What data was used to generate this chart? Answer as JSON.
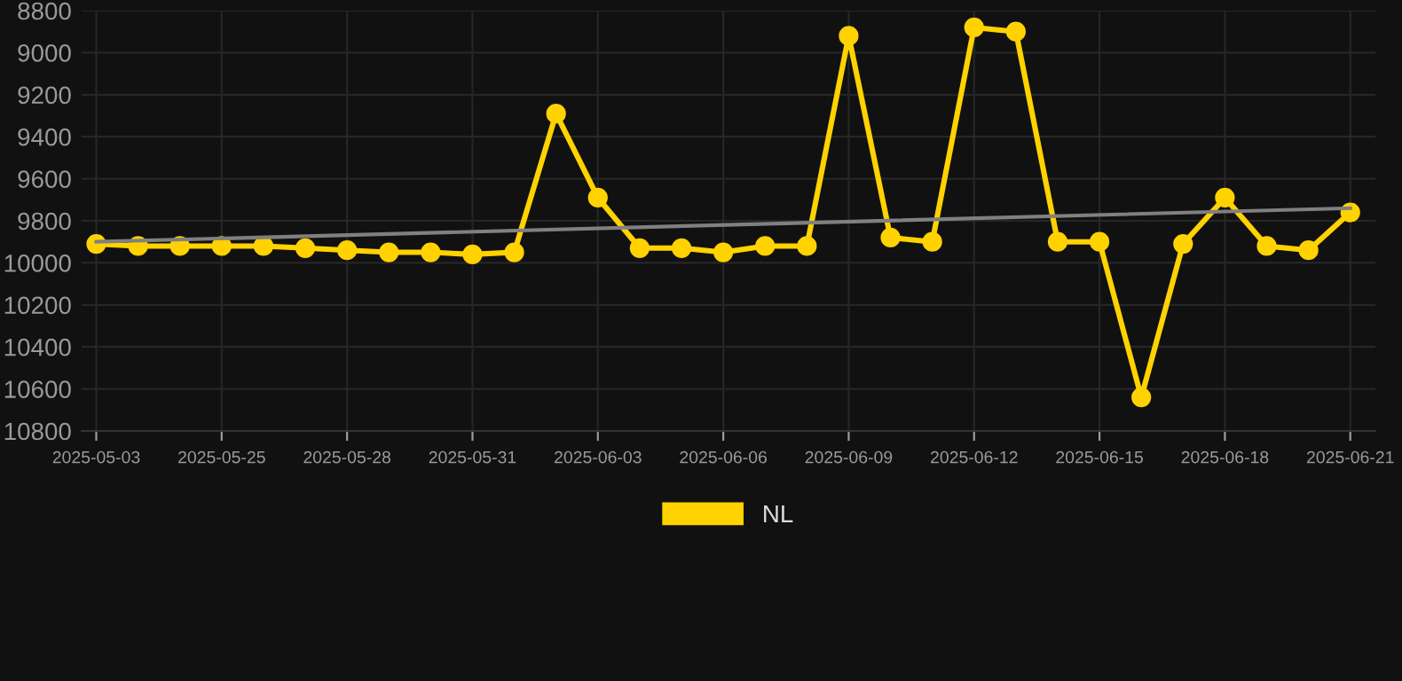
{
  "chart_data": {
    "type": "line",
    "categories": [
      "2025-05-03",
      null,
      null,
      "2025-05-25",
      null,
      null,
      "2025-05-28",
      null,
      null,
      "2025-05-31",
      null,
      null,
      "2025-06-03",
      null,
      null,
      "2025-06-06",
      null,
      null,
      "2025-06-09",
      null,
      null,
      "2025-06-12",
      null,
      null,
      "2025-06-15",
      null,
      null,
      "2025-06-18",
      null,
      null,
      "2025-06-21"
    ],
    "series": [
      {
        "name": "NL",
        "color": "#ffd200",
        "marker": "circle",
        "values": [
          9910,
          9920,
          9920,
          9920,
          9920,
          9930,
          9940,
          9950,
          9950,
          9960,
          9950,
          9290,
          9690,
          9930,
          9930,
          9950,
          9920,
          9920,
          8920,
          9880,
          9900,
          8880,
          8900,
          9900,
          9900,
          10640,
          9910,
          9690,
          9920,
          9940,
          9760
        ]
      },
      {
        "color": "#808080",
        "marker": "none",
        "values": [
          9900,
          null,
          null,
          null,
          null,
          null,
          null,
          null,
          null,
          null,
          null,
          null,
          null,
          null,
          null,
          null,
          null,
          null,
          null,
          null,
          null,
          null,
          null,
          null,
          null,
          null,
          null,
          null,
          null,
          null,
          9740
        ]
      }
    ],
    "ylim": [
      10800,
      8800
    ],
    "yticks": [
      8800,
      9000,
      9200,
      9400,
      9600,
      9800,
      10000,
      10200,
      10400,
      10600,
      10800
    ],
    "grid": true,
    "legend": "bottom",
    "line_style": "solid"
  }
}
